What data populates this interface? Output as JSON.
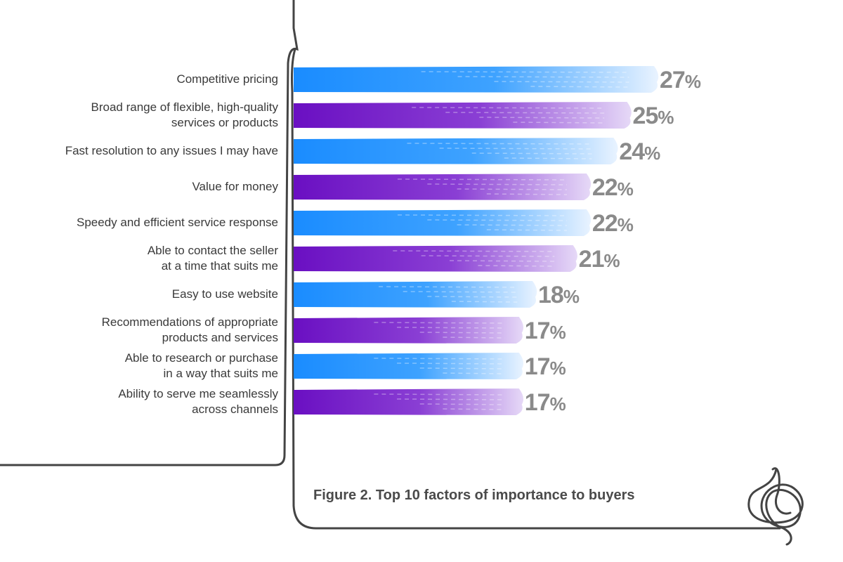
{
  "caption": "Figure 2.  Top 10 factors of importance to buyers",
  "colors": {
    "blue": "#1a8cff",
    "purple": "#6a0fc2",
    "value_text": "#8a8a8a",
    "frame": "#444444"
  },
  "chart_data": {
    "type": "bar",
    "orientation": "horizontal",
    "title": "Figure 2.  Top 10 factors of importance to buyers",
    "value_suffix": "%",
    "xlim": [
      0,
      30
    ],
    "categories": [
      "Competitive pricing",
      "Broad range of flexible, high-quality services or products",
      "Fast resolution to any issues I may have",
      "Value for money",
      "Speedy and efficient service response",
      "Able to contact the seller at a time that suits me",
      "Easy to use website",
      "Recommendations of appropriate products and services",
      "Able to research or purchase in a way that suits me",
      "Ability to serve me seamlessly across channels"
    ],
    "category_lines": [
      [
        "Competitive pricing"
      ],
      [
        "Broad range of flexible, high-quality",
        "services or products"
      ],
      [
        "Fast resolution to any issues I may have"
      ],
      [
        "Value for money"
      ],
      [
        "Speedy and efficient service response"
      ],
      [
        "Able to contact the seller",
        "at a time that suits me"
      ],
      [
        "Easy to use website"
      ],
      [
        "Recommendations of appropriate",
        "products and services"
      ],
      [
        "Able to research or purchase",
        "in a way that suits me"
      ],
      [
        "Ability to serve me seamlessly",
        "across channels"
      ]
    ],
    "values": [
      27,
      25,
      24,
      22,
      22,
      21,
      18,
      17,
      17,
      17
    ],
    "bar_colors": [
      "blue",
      "purple",
      "blue",
      "purple",
      "blue",
      "purple",
      "blue",
      "purple",
      "blue",
      "purple"
    ]
  }
}
